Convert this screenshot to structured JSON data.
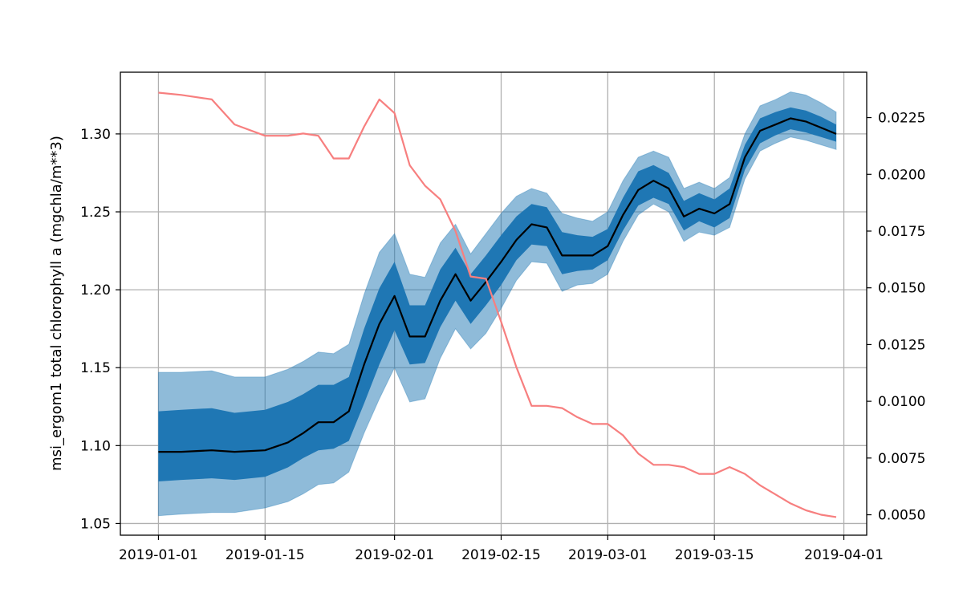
{
  "chart_data": {
    "type": "line",
    "title": "",
    "xlabel": "",
    "ylabel": "msi_ergom1 total chlorophyll a (mgchla/m**3)",
    "y2label": "",
    "grid": true,
    "legend": "none",
    "xlim": [
      "2018-12-27",
      "2019-04-04"
    ],
    "ylim": [
      1.0425,
      1.3396
    ],
    "y2lim": [
      0.0041,
      0.0245
    ],
    "xticks": [
      {
        "date": "2019-01-01",
        "label": "2019-01-01"
      },
      {
        "date": "2019-01-15",
        "label": "2019-01-15"
      },
      {
        "date": "2019-02-01",
        "label": "2019-02-01"
      },
      {
        "date": "2019-02-15",
        "label": "2019-02-15"
      },
      {
        "date": "2019-03-01",
        "label": "2019-03-01"
      },
      {
        "date": "2019-03-15",
        "label": "2019-03-15"
      },
      {
        "date": "2019-04-01",
        "label": "2019-04-01"
      }
    ],
    "yticks": [
      {
        "value": 1.05,
        "label": "1.05"
      },
      {
        "value": 1.1,
        "label": "1.10"
      },
      {
        "value": 1.15,
        "label": "1.15"
      },
      {
        "value": 1.2,
        "label": "1.20"
      },
      {
        "value": 1.25,
        "label": "1.25"
      },
      {
        "value": 1.3,
        "label": "1.30"
      }
    ],
    "y2ticks": [
      {
        "value": 0.005,
        "label": "0.0050"
      },
      {
        "value": 0.0075,
        "label": "0.0075"
      },
      {
        "value": 0.01,
        "label": "0.0100"
      },
      {
        "value": 0.0125,
        "label": "0.0125"
      },
      {
        "value": 0.015,
        "label": "0.0150"
      },
      {
        "value": 0.0175,
        "label": "0.0175"
      },
      {
        "value": 0.02,
        "label": "0.0200"
      },
      {
        "value": 0.0225,
        "label": "0.0225"
      }
    ],
    "colors": {
      "median": "#000000",
      "inner_band": "#1f77b4",
      "outer_band": "#1f77b4",
      "outer_band_opacity": 0.5,
      "right_series": "#f77f7f",
      "grid": "#b0b0b0"
    },
    "x": [
      "2019-01-01",
      "2019-01-04",
      "2019-01-08",
      "2019-01-11",
      "2019-01-15",
      "2019-01-18",
      "2019-01-20",
      "2019-01-22",
      "2019-01-24",
      "2019-01-26",
      "2019-01-28",
      "2019-01-30",
      "2019-02-01",
      "2019-02-03",
      "2019-02-05",
      "2019-02-07",
      "2019-02-09",
      "2019-02-11",
      "2019-02-13",
      "2019-02-15",
      "2019-02-17",
      "2019-02-19",
      "2019-02-21",
      "2019-02-23",
      "2019-02-25",
      "2019-02-27",
      "2019-03-01",
      "2019-03-03",
      "2019-03-05",
      "2019-03-07",
      "2019-03-09",
      "2019-03-11",
      "2019-03-13",
      "2019-03-15",
      "2019-03-17",
      "2019-03-19",
      "2019-03-21",
      "2019-03-23",
      "2019-03-25",
      "2019-03-27",
      "2019-03-29",
      "2019-03-31"
    ],
    "series": [
      {
        "axis": "left",
        "role": "median",
        "values": [
          1.096,
          1.096,
          1.097,
          1.096,
          1.097,
          1.102,
          1.108,
          1.115,
          1.115,
          1.122,
          1.152,
          1.178,
          1.196,
          1.17,
          1.17,
          1.193,
          1.21,
          1.193,
          1.205,
          1.218,
          1.232,
          1.242,
          1.24,
          1.222,
          1.222,
          1.222,
          1.228,
          1.248,
          1.264,
          1.27,
          1.265,
          1.247,
          1.252,
          1.249,
          1.255,
          1.285,
          1.302,
          1.306,
          1.31,
          1.308,
          1.304,
          1.3
        ]
      },
      {
        "axis": "left",
        "role": "inner_lower",
        "values": [
          1.077,
          1.078,
          1.079,
          1.078,
          1.08,
          1.086,
          1.092,
          1.097,
          1.098,
          1.103,
          1.127,
          1.152,
          1.174,
          1.152,
          1.153,
          1.176,
          1.193,
          1.178,
          1.19,
          1.203,
          1.219,
          1.229,
          1.228,
          1.21,
          1.212,
          1.213,
          1.219,
          1.238,
          1.254,
          1.259,
          1.255,
          1.238,
          1.244,
          1.24,
          1.246,
          1.277,
          1.294,
          1.299,
          1.303,
          1.301,
          1.298,
          1.295
        ]
      },
      {
        "axis": "left",
        "role": "inner_upper",
        "values": [
          1.122,
          1.123,
          1.124,
          1.121,
          1.123,
          1.128,
          1.133,
          1.139,
          1.139,
          1.144,
          1.175,
          1.201,
          1.218,
          1.19,
          1.19,
          1.213,
          1.227,
          1.21,
          1.222,
          1.235,
          1.247,
          1.255,
          1.253,
          1.237,
          1.235,
          1.234,
          1.239,
          1.259,
          1.276,
          1.28,
          1.275,
          1.257,
          1.262,
          1.258,
          1.265,
          1.293,
          1.31,
          1.314,
          1.317,
          1.315,
          1.311,
          1.306
        ]
      },
      {
        "axis": "left",
        "role": "outer_lower",
        "values": [
          1.055,
          1.056,
          1.057,
          1.057,
          1.06,
          1.064,
          1.069,
          1.075,
          1.076,
          1.083,
          1.108,
          1.13,
          1.15,
          1.128,
          1.13,
          1.156,
          1.175,
          1.162,
          1.172,
          1.188,
          1.206,
          1.218,
          1.217,
          1.199,
          1.203,
          1.204,
          1.21,
          1.231,
          1.248,
          1.255,
          1.25,
          1.231,
          1.237,
          1.235,
          1.24,
          1.271,
          1.289,
          1.294,
          1.298,
          1.296,
          1.293,
          1.29
        ]
      },
      {
        "axis": "left",
        "role": "outer_upper",
        "values": [
          1.147,
          1.147,
          1.148,
          1.144,
          1.144,
          1.149,
          1.154,
          1.16,
          1.159,
          1.165,
          1.197,
          1.224,
          1.236,
          1.21,
          1.208,
          1.23,
          1.242,
          1.223,
          1.236,
          1.249,
          1.26,
          1.265,
          1.262,
          1.249,
          1.246,
          1.244,
          1.25,
          1.27,
          1.285,
          1.289,
          1.285,
          1.265,
          1.269,
          1.265,
          1.272,
          1.3,
          1.318,
          1.322,
          1.327,
          1.325,
          1.32,
          1.314
        ]
      },
      {
        "axis": "right",
        "role": "right_series",
        "values": [
          0.0236,
          0.0235,
          0.0233,
          0.0222,
          0.0217,
          0.0217,
          0.0218,
          0.0217,
          0.0207,
          0.0207,
          0.0221,
          0.0233,
          0.0227,
          0.0204,
          0.0195,
          0.0189,
          0.0175,
          0.0155,
          0.0154,
          0.0135,
          0.0115,
          0.0098,
          0.0098,
          0.0097,
          0.0093,
          0.009,
          0.009,
          0.0085,
          0.0077,
          0.0072,
          0.0072,
          0.0071,
          0.0068,
          0.0068,
          0.0071,
          0.0068,
          0.0063,
          0.0059,
          0.0055,
          0.0052,
          0.005,
          0.0049
        ]
      }
    ]
  }
}
